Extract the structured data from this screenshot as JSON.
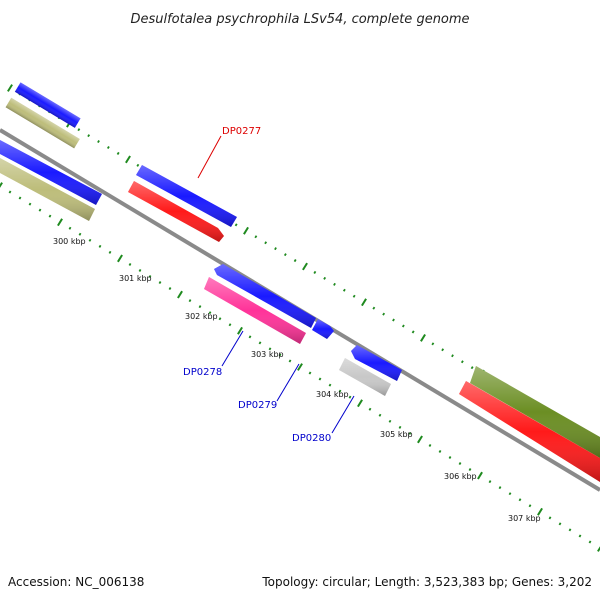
{
  "title": "Desulfotalea psychrophila LSv54, complete genome",
  "footer": {
    "accession": "Accession: NC_006138",
    "stats": "Topology: circular; Length: 3,523,383 bp; Genes: 3,202"
  },
  "colors": {
    "backbone": "#8a8a8a",
    "tick": "#1f8a1f",
    "forward_cds": "#1a1aff",
    "reverse_cds": "#ff1a1a",
    "olive_feature": "#bdbd7a",
    "dark_olive_feature": "#6b8e23",
    "magenta_feature": "#ff3399",
    "gray_feature": "#c8c8c8",
    "label_red": "#dd0000",
    "label_blue": "#0000cc"
  },
  "position_labels": [
    "300 kbp",
    "301 kbp",
    "302 kbp",
    "303 kbp",
    "304 kbp",
    "305 kbp",
    "306 kbp",
    "307 kbp"
  ],
  "gene_labels": [
    {
      "text": "DP0277",
      "color": "label_red"
    },
    {
      "text": "DP0278",
      "color": "label_blue"
    },
    {
      "text": "DP0279",
      "color": "label_blue"
    },
    {
      "text": "DP0280",
      "color": "label_blue"
    }
  ]
}
